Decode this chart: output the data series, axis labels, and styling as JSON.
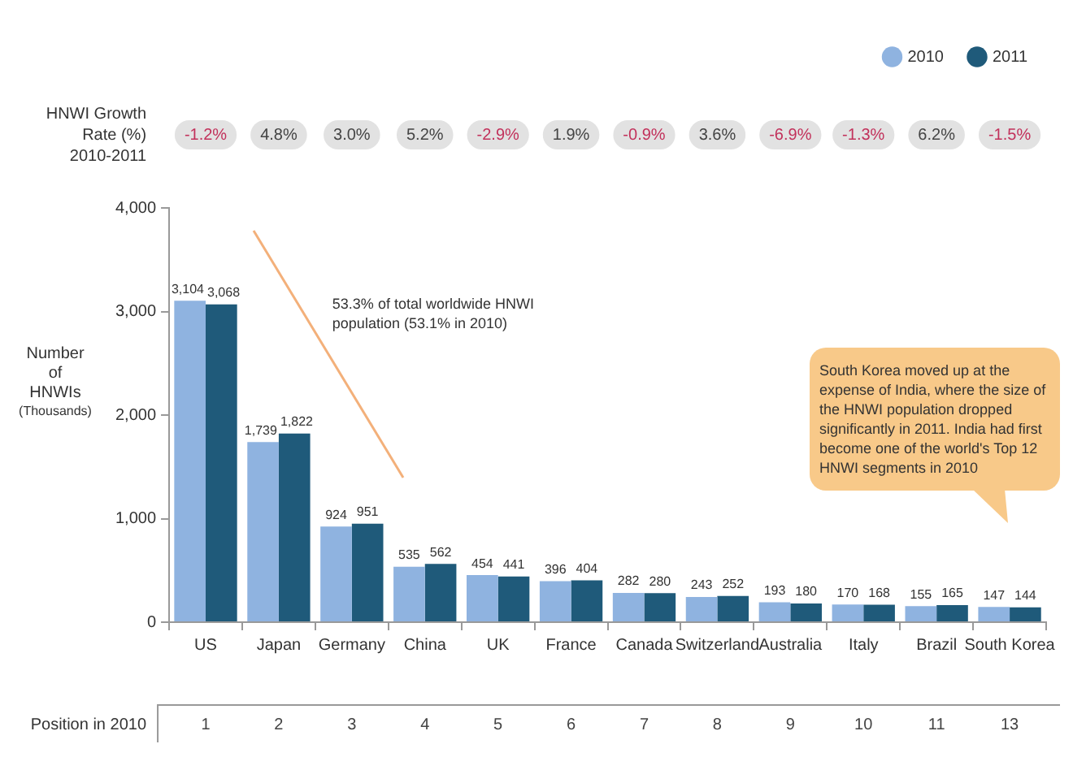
{
  "chart_data": {
    "type": "bar",
    "categories": [
      "US",
      "Japan",
      "Germany",
      "China",
      "UK",
      "France",
      "Canada",
      "Switzerland",
      "Australia",
      "Italy",
      "Brazil",
      "South Korea"
    ],
    "series": [
      {
        "name": "2010",
        "color": "#8fb3e0",
        "values": [
          3104,
          1739,
          924,
          535,
          454,
          396,
          282,
          243,
          193,
          170,
          155,
          147
        ],
        "value_labels": [
          "3,104",
          "1,739",
          "924",
          "535",
          "454",
          "396",
          "282",
          "243",
          "193",
          "170",
          "155",
          "147"
        ]
      },
      {
        "name": "2011",
        "color": "#1f5a7a",
        "values": [
          3068,
          1822,
          951,
          562,
          441,
          404,
          280,
          252,
          180,
          168,
          165,
          144
        ],
        "value_labels": [
          "3,068",
          "1,822",
          "951",
          "562",
          "441",
          "404",
          "280",
          "252",
          "180",
          "168",
          "165",
          "144"
        ]
      }
    ],
    "ylabel": "Number of HNWIs (Thousands)",
    "ylim": [
      0,
      4000
    ],
    "yticks": [
      {
        "value": 0,
        "label": "0"
      },
      {
        "value": 1000,
        "label": "1,000"
      },
      {
        "value": 2000,
        "label": "2,000"
      },
      {
        "value": 3000,
        "label": "3,000"
      },
      {
        "value": 4000,
        "label": "4,000"
      }
    ],
    "grid": false,
    "legend": "top right",
    "annotations": [
      "HNWI Growth Rate (%) 2010-2011",
      "-1.2%",
      "4.8%",
      "3.0%",
      "5.2%",
      "-2.9%",
      "1.9%",
      "-0.9%",
      "3.6%",
      "-6.9%",
      "-1.3%",
      "6.2%",
      "-1.5%",
      "Position in 2010",
      "1",
      "2",
      "3",
      "4",
      "5",
      "6",
      "7",
      "8",
      "9",
      "10",
      "11",
      "13",
      "53.3% of total worldwide HNWI population (53.1% in 2010)",
      "South Korea moved up at the expense of India, where the size of the HNWI population dropped significantly in 2011. India had first become one of the world's Top 12 HNWI segments in 2010"
    ]
  }
}
